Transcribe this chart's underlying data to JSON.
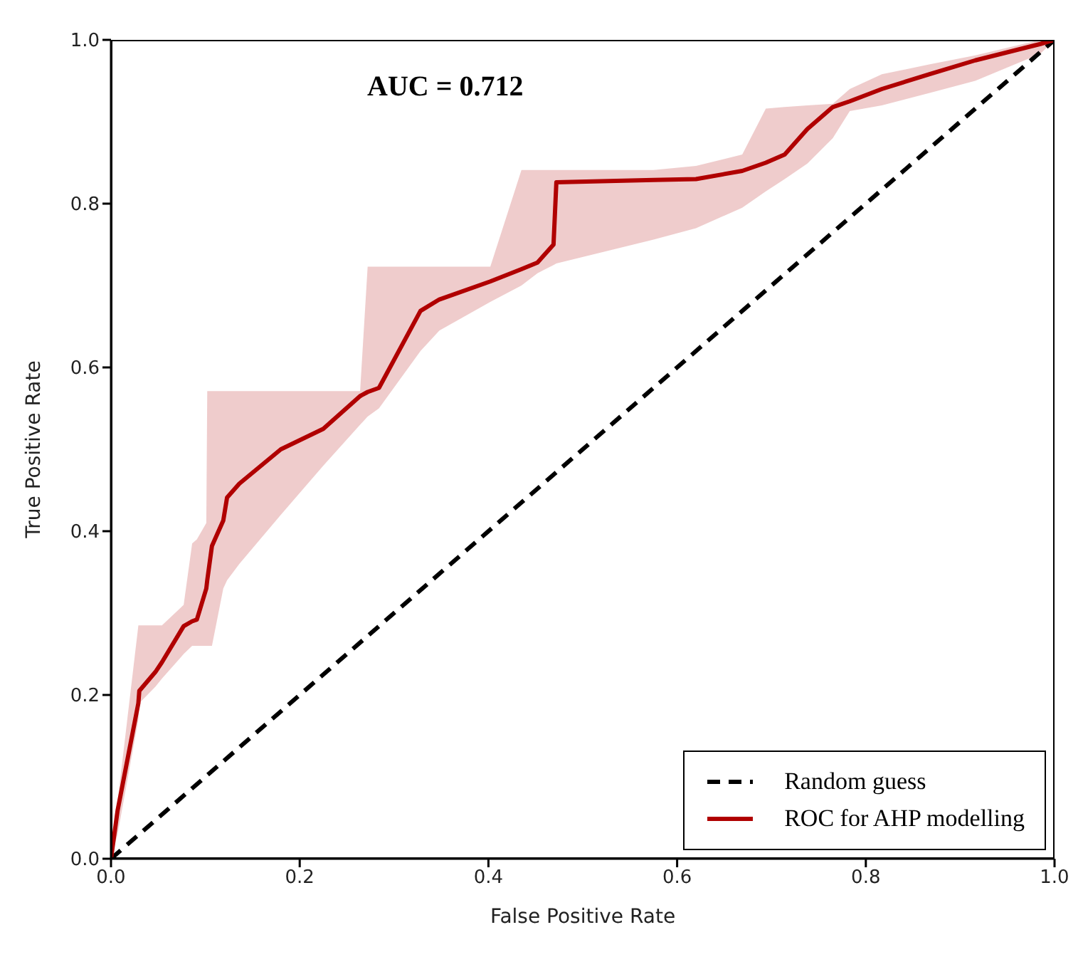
{
  "chart_data": {
    "type": "line",
    "xlabel": "False Positive Rate",
    "ylabel": "True Positive Rate",
    "annotations": [
      "AUC = 0.712"
    ],
    "xlim": [
      0,
      1
    ],
    "ylim": [
      0,
      1
    ],
    "xticks": [
      {
        "value": 0,
        "label": "0.0"
      },
      {
        "value": 0.2,
        "label": "0.2"
      },
      {
        "value": 0.4,
        "label": "0.4"
      },
      {
        "value": 0.6,
        "label": "0.6"
      },
      {
        "value": 0.8,
        "label": "0.8"
      },
      {
        "value": 1,
        "label": "1.0"
      }
    ],
    "yticks": [
      {
        "value": 0,
        "label": "0.0"
      },
      {
        "value": 0.2,
        "label": "0.2"
      },
      {
        "value": 0.4,
        "label": "0.4"
      },
      {
        "value": 0.6,
        "label": "0.6"
      },
      {
        "value": 0.8,
        "label": "0.8"
      },
      {
        "value": 1,
        "label": "1.0"
      }
    ],
    "grid": false,
    "legend": "bottom right",
    "marker": "none",
    "series": [
      {
        "name": "Random guess",
        "color": "#000000",
        "line_style": "dashed",
        "x": [
          0,
          1
        ],
        "values": [
          0,
          1
        ]
      },
      {
        "name": "ROC for AHP modelling",
        "color": "#b00000",
        "line_style": "solid",
        "x": [
          0,
          0.007,
          0.029,
          0.03,
          0.047,
          0.054,
          0.077,
          0.086,
          0.091,
          0.101,
          0.102,
          0.107,
          0.119,
          0.123,
          0.136,
          0.18,
          0.225,
          0.264,
          0.272,
          0.284,
          0.328,
          0.348,
          0.402,
          0.435,
          0.452,
          0.469,
          0.472,
          0.575,
          0.62,
          0.669,
          0.694,
          0.714,
          0.738,
          0.765,
          0.783,
          0.817,
          0.867,
          0.916,
          0.985,
          1
        ],
        "values": [
          0,
          0.059,
          0.19,
          0.205,
          0.228,
          0.24,
          0.284,
          0.29,
          0.292,
          0.33,
          0.34,
          0.382,
          0.413,
          0.441,
          0.458,
          0.5,
          0.525,
          0.565,
          0.57,
          0.575,
          0.669,
          0.683,
          0.705,
          0.72,
          0.728,
          0.75,
          0.826,
          0.829,
          0.83,
          0.84,
          0.85,
          0.86,
          0.891,
          0.918,
          0.925,
          0.94,
          0.958,
          0.975,
          0.995,
          1
        ],
        "lower": [
          0,
          0.03,
          0.17,
          0.19,
          0.21,
          0.22,
          0.25,
          0.26,
          0.26,
          0.26,
          0.26,
          0.26,
          0.33,
          0.34,
          0.36,
          0.42,
          0.48,
          0.53,
          0.54,
          0.55,
          0.62,
          0.645,
          0.68,
          0.7,
          0.715,
          0.725,
          0.727,
          0.756,
          0.77,
          0.795,
          0.815,
          0.83,
          0.849,
          0.88,
          0.913,
          0.92,
          0.935,
          0.95,
          0.983,
          1
        ],
        "upper": [
          0,
          0.07,
          0.285,
          0.285,
          0.285,
          0.285,
          0.31,
          0.385,
          0.39,
          0.41,
          0.571,
          0.571,
          0.571,
          0.571,
          0.571,
          0.571,
          0.571,
          0.571,
          0.723,
          0.723,
          0.723,
          0.723,
          0.723,
          0.841,
          0.841,
          0.841,
          0.841,
          0.841,
          0.846,
          0.86,
          0.916,
          0.918,
          0.92,
          0.922,
          0.94,
          0.958,
          0.97,
          0.981,
          1,
          1
        ]
      }
    ]
  }
}
